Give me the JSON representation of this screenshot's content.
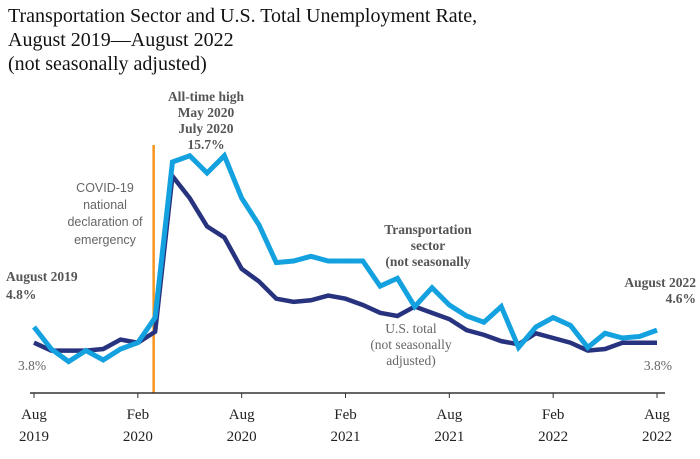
{
  "chart_data": {
    "type": "line",
    "title": [
      "Transportation Sector and U.S. Total Unemployment Rate,",
      "August 2019—August 2022",
      "(not seasonally adjusted)"
    ],
    "x": [
      "2019-08",
      "2019-09",
      "2019-10",
      "2019-11",
      "2019-12",
      "2020-01",
      "2020-02",
      "2020-03",
      "2020-04",
      "2020-05",
      "2020-06",
      "2020-07",
      "2020-08",
      "2020-09",
      "2020-10",
      "2020-11",
      "2020-12",
      "2021-01",
      "2021-02",
      "2021-03",
      "2021-04",
      "2021-05",
      "2021-06",
      "2021-07",
      "2021-08",
      "2021-09",
      "2021-10",
      "2021-11",
      "2021-12",
      "2022-01",
      "2022-02",
      "2022-03",
      "2022-04",
      "2022-05",
      "2022-06",
      "2022-07",
      "2022-08"
    ],
    "series": [
      {
        "name": "Transportation sector (not seasonally",
        "color": "#14a1df",
        "values": [
          4.8,
          3.4,
          2.6,
          3.3,
          2.7,
          3.4,
          3.8,
          5.4,
          15.3,
          15.7,
          14.6,
          15.7,
          13.0,
          11.3,
          8.9,
          9.0,
          9.3,
          9.0,
          9.0,
          9.0,
          7.4,
          7.9,
          6.1,
          7.3,
          6.2,
          5.5,
          5.1,
          6.1,
          3.5,
          4.8,
          5.4,
          4.9,
          3.5,
          4.4,
          4.1,
          4.2,
          4.6
        ]
      },
      {
        "name": "U.S. total (not seasonally adjusted)",
        "color": "#27337e",
        "values": [
          3.8,
          3.3,
          3.3,
          3.3,
          3.4,
          4.0,
          3.8,
          4.5,
          14.4,
          13.0,
          11.2,
          10.5,
          8.5,
          7.7,
          6.6,
          6.4,
          6.5,
          6.8,
          6.6,
          6.2,
          5.7,
          5.5,
          6.1,
          5.7,
          5.3,
          4.6,
          4.3,
          3.9,
          3.7,
          4.4,
          4.1,
          3.8,
          3.3,
          3.4,
          3.8,
          3.8,
          3.8
        ]
      }
    ],
    "x_ticks": [
      {
        "month": "Aug",
        "year": "2019"
      },
      {
        "month": "Feb",
        "year": "2020"
      },
      {
        "month": "Aug",
        "year": "2020"
      },
      {
        "month": "Feb",
        "year": "2021"
      },
      {
        "month": "Aug",
        "year": "2021"
      },
      {
        "month": "Feb",
        "year": "2022"
      },
      {
        "month": "Aug",
        "year": "2022"
      }
    ],
    "ylim": [
      0.6,
      16.7
    ],
    "grid": false,
    "legend": "none (inline labels)",
    "event_line": {
      "date": "2020-03",
      "color": "#f7941d",
      "label": [
        "COVID-19",
        "national",
        "declaration of",
        "emergency"
      ]
    },
    "annotations": {
      "peak": [
        "All-time high",
        "May 2020",
        "July 2020",
        "15.7%"
      ],
      "start": [
        "August 2019",
        "4.8%"
      ],
      "start_us": "3.8%",
      "end": [
        "August 2022",
        "4.6%"
      ],
      "end_us": "3.8%",
      "transport_label": [
        "Transportation",
        "sector",
        "(not seasonally"
      ],
      "us_label": [
        "U.S. total",
        "(not seasonally",
        "adjusted)"
      ]
    }
  }
}
